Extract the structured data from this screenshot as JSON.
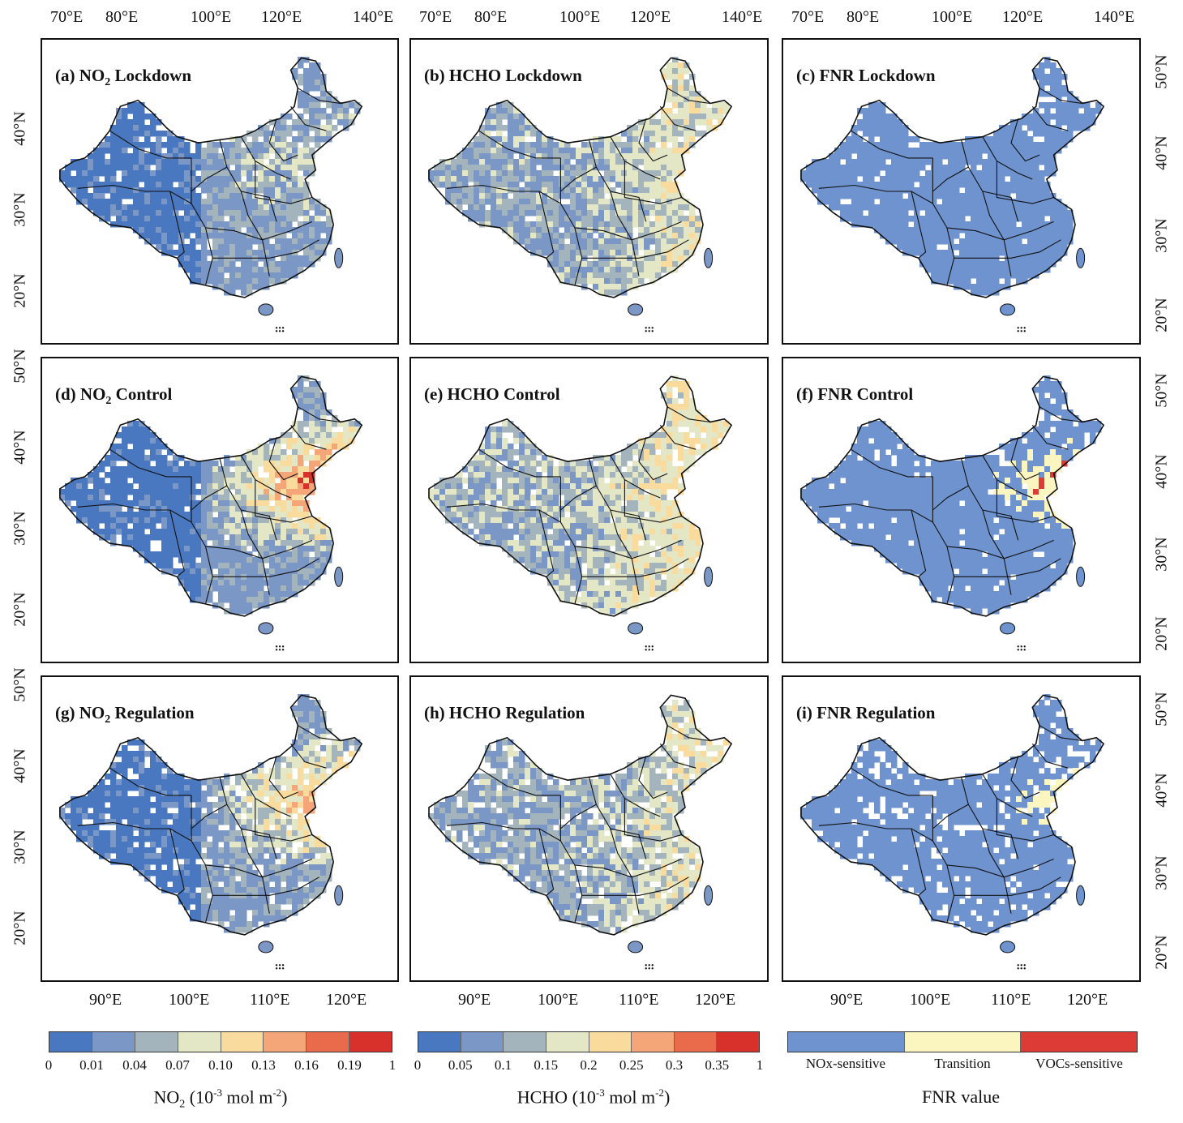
{
  "top_lon_ticks": [
    "70°E",
    "80°E",
    "100°E",
    "120°E",
    "140°E"
  ],
  "bottom_lon_ticks": [
    "90°E",
    "100°E",
    "110°E",
    "120°E"
  ],
  "left_lat_ticks": [
    "40°N",
    "30°N",
    "20°N"
  ],
  "right_lat_ticks": [
    "50°N",
    "40°N",
    "30°N",
    "20°N"
  ],
  "panels": [
    {
      "label": "(a) NO",
      "sub": "2",
      "rest": " Lockdown",
      "variable": "NO2",
      "scenario": "Lockdown"
    },
    {
      "label": "(b) HCHO Lockdown",
      "sub": "",
      "rest": "",
      "variable": "HCHO",
      "scenario": "Lockdown"
    },
    {
      "label": "(c) FNR Lockdown",
      "sub": "",
      "rest": "",
      "variable": "FNR",
      "scenario": "Lockdown"
    },
    {
      "label": "(d) NO",
      "sub": "2",
      "rest": " Control",
      "variable": "NO2",
      "scenario": "Control"
    },
    {
      "label": "(e) HCHO Control",
      "sub": "",
      "rest": "",
      "variable": "HCHO",
      "scenario": "Control"
    },
    {
      "label": "(f) FNR Control",
      "sub": "",
      "rest": "",
      "variable": "FNR",
      "scenario": "Control"
    },
    {
      "label": "(g) NO",
      "sub": "2",
      "rest": " Regulation",
      "variable": "NO2",
      "scenario": "Regulation"
    },
    {
      "label": "(h) HCHO Regulation",
      "sub": "",
      "rest": "",
      "variable": "HCHO",
      "scenario": "Regulation"
    },
    {
      "label": "(i) FNR Regulation",
      "sub": "",
      "rest": "",
      "variable": "FNR",
      "scenario": "Regulation"
    }
  ],
  "colorbars": {
    "no2": {
      "colors": [
        "#4a78c0",
        "#7b97c6",
        "#a4b4bc",
        "#e3e7c5",
        "#f9dc9d",
        "#f4a678",
        "#ea6a4c",
        "#d8302b"
      ],
      "ticks": [
        "0",
        "0.01",
        "0.04",
        "0.07",
        "0.10",
        "0.13",
        "0.16",
        "0.19",
        "1"
      ],
      "title_main": "NO",
      "title_sub": "2",
      "title_unit_pre": " (10",
      "title_exp": "-3",
      "title_unit_mid": " mol m",
      "title_exp2": "-2",
      "title_unit_post": ")"
    },
    "hcho": {
      "colors": [
        "#4a78c0",
        "#7b97c6",
        "#a4b4bc",
        "#e3e7c5",
        "#f9dc9d",
        "#f4a678",
        "#ea6a4c",
        "#d8302b"
      ],
      "ticks": [
        "0",
        "0.05",
        "0.1",
        "0.15",
        "0.2",
        "0.25",
        "0.3",
        "0.35",
        "1"
      ],
      "title_main": "HCHO",
      "title_unit_pre": " (10",
      "title_exp": "-3",
      "title_unit_mid": " mol m",
      "title_exp2": "-2",
      "title_unit_post": ")"
    },
    "fnr": {
      "colors": [
        "#6e93cf",
        "#fbf6c0",
        "#dd3b36"
      ],
      "labels": [
        "NOx-sensitive",
        "Transition",
        "VOCs-sensitive"
      ],
      "title": "FNR value"
    }
  },
  "map_colors": {
    "low": "#4a78c0",
    "mid": "#7b97c6",
    "grey": "#a4b4bc",
    "pale": "#e3e7c5",
    "yellow": "#f9dc9d",
    "orange": "#f4a678",
    "red": "#d8302b",
    "fnr_low": "#6e93cf",
    "fnr_mid": "#fbf6c0",
    "fnr_high": "#dd3b36"
  }
}
